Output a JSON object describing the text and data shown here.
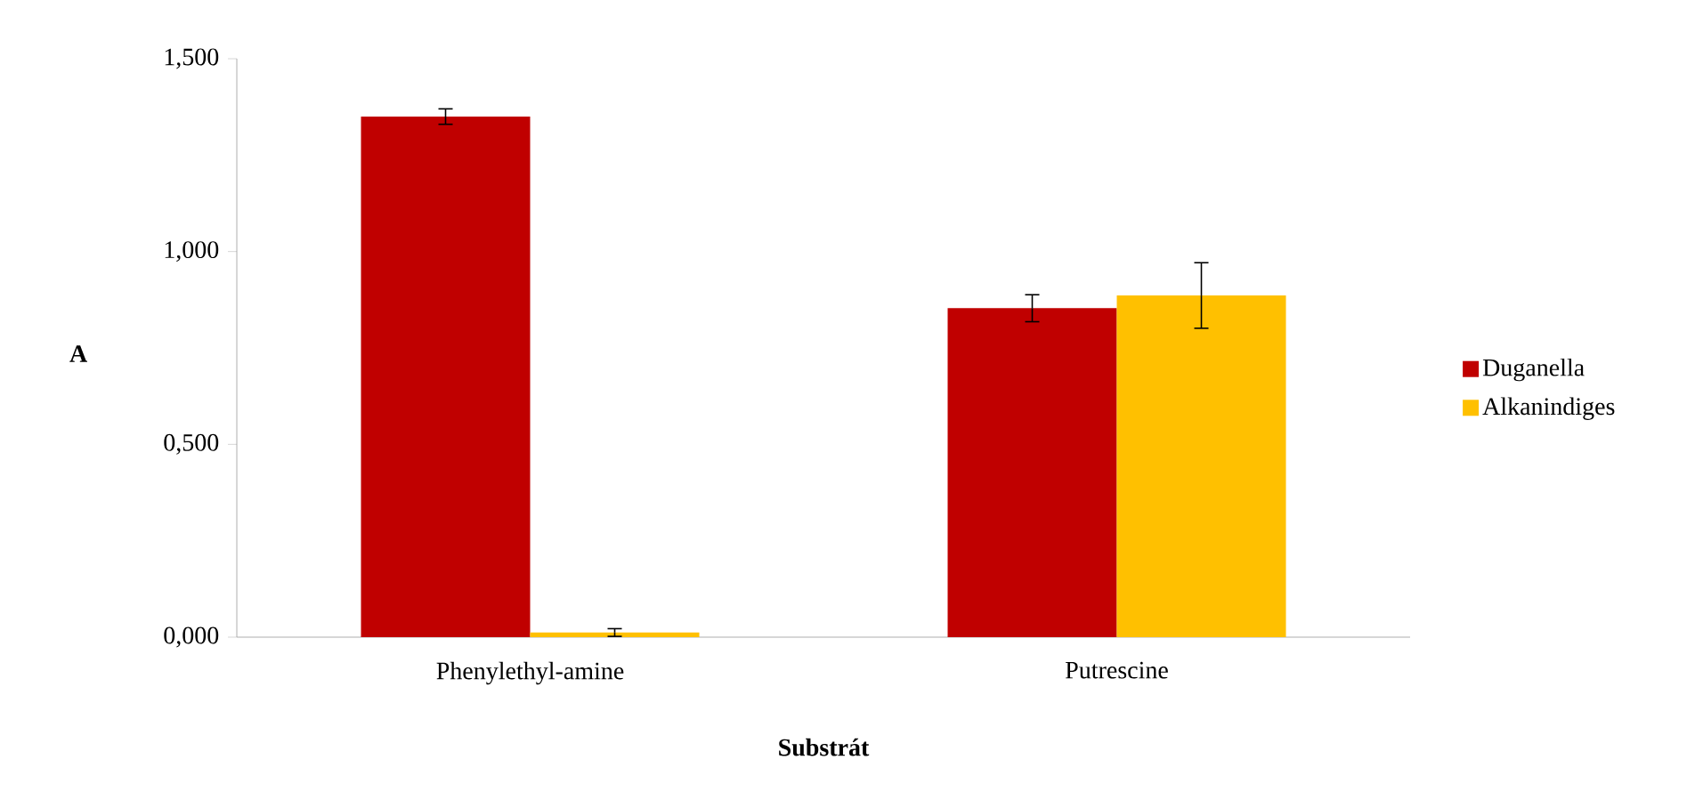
{
  "chart_data": {
    "type": "bar",
    "xlabel": "**Substrát**",
    "ylabel": "**A**",
    "categories": [
      "Phenylethyl-amine",
      "Putrescine"
    ],
    "series": [
      {
        "name": "Duganella",
        "color": "#c00000",
        "values": [
          1.35,
          0.853
        ],
        "errors": [
          0.02,
          0.035
        ]
      },
      {
        "name": "Alkanindiges",
        "color": "#ffc000",
        "values": [
          0.012,
          0.886
        ],
        "errors": [
          0.01,
          0.085
        ]
      }
    ],
    "ylim": [
      0,
      1.5
    ],
    "yticks": [
      {
        "value": 0,
        "label": "0,000"
      },
      {
        "value": 0.5,
        "label": "0,500"
      },
      {
        "value": 1.0,
        "label": "1,000"
      },
      {
        "value": 1.5,
        "label": "1,500"
      }
    ],
    "grid": false,
    "legend": "right"
  }
}
